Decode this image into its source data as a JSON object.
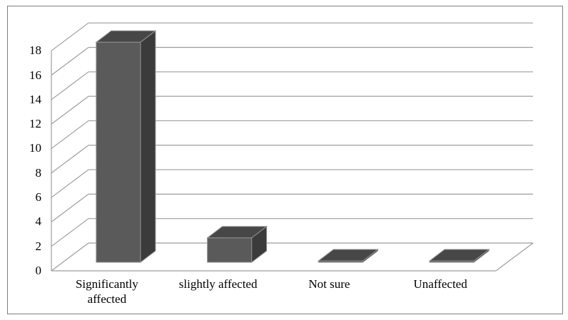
{
  "chart_data": {
    "type": "bar",
    "variant": "3d-column",
    "title": "",
    "xlabel": "",
    "ylabel": "",
    "categories": [
      "Significantly affected",
      "slightly affected",
      "Not sure",
      "Unaffected"
    ],
    "category_display_lines": [
      [
        "Significantly",
        "affected"
      ],
      [
        "slightly affected"
      ],
      [
        "Not sure"
      ],
      [
        "Unaffected"
      ]
    ],
    "values": [
      18,
      2,
      0,
      0
    ],
    "ylim": [
      0,
      18
    ],
    "ytick_step": 2,
    "yticks": [
      "0",
      "2",
      "4",
      "6",
      "8",
      "10",
      "12",
      "14",
      "16",
      "18"
    ],
    "grid": true,
    "legend": false,
    "colors": {
      "bar_front": "#5a5a5a",
      "bar_top": "#474747",
      "bar_side": "#3b3b3b",
      "bar_edge": "#8f8f8f",
      "gridline": "#9e9e9e",
      "axis": "#9e9e9e",
      "text": "#000000",
      "frame_border": "#7f7f7f",
      "background": "#ffffff"
    }
  }
}
